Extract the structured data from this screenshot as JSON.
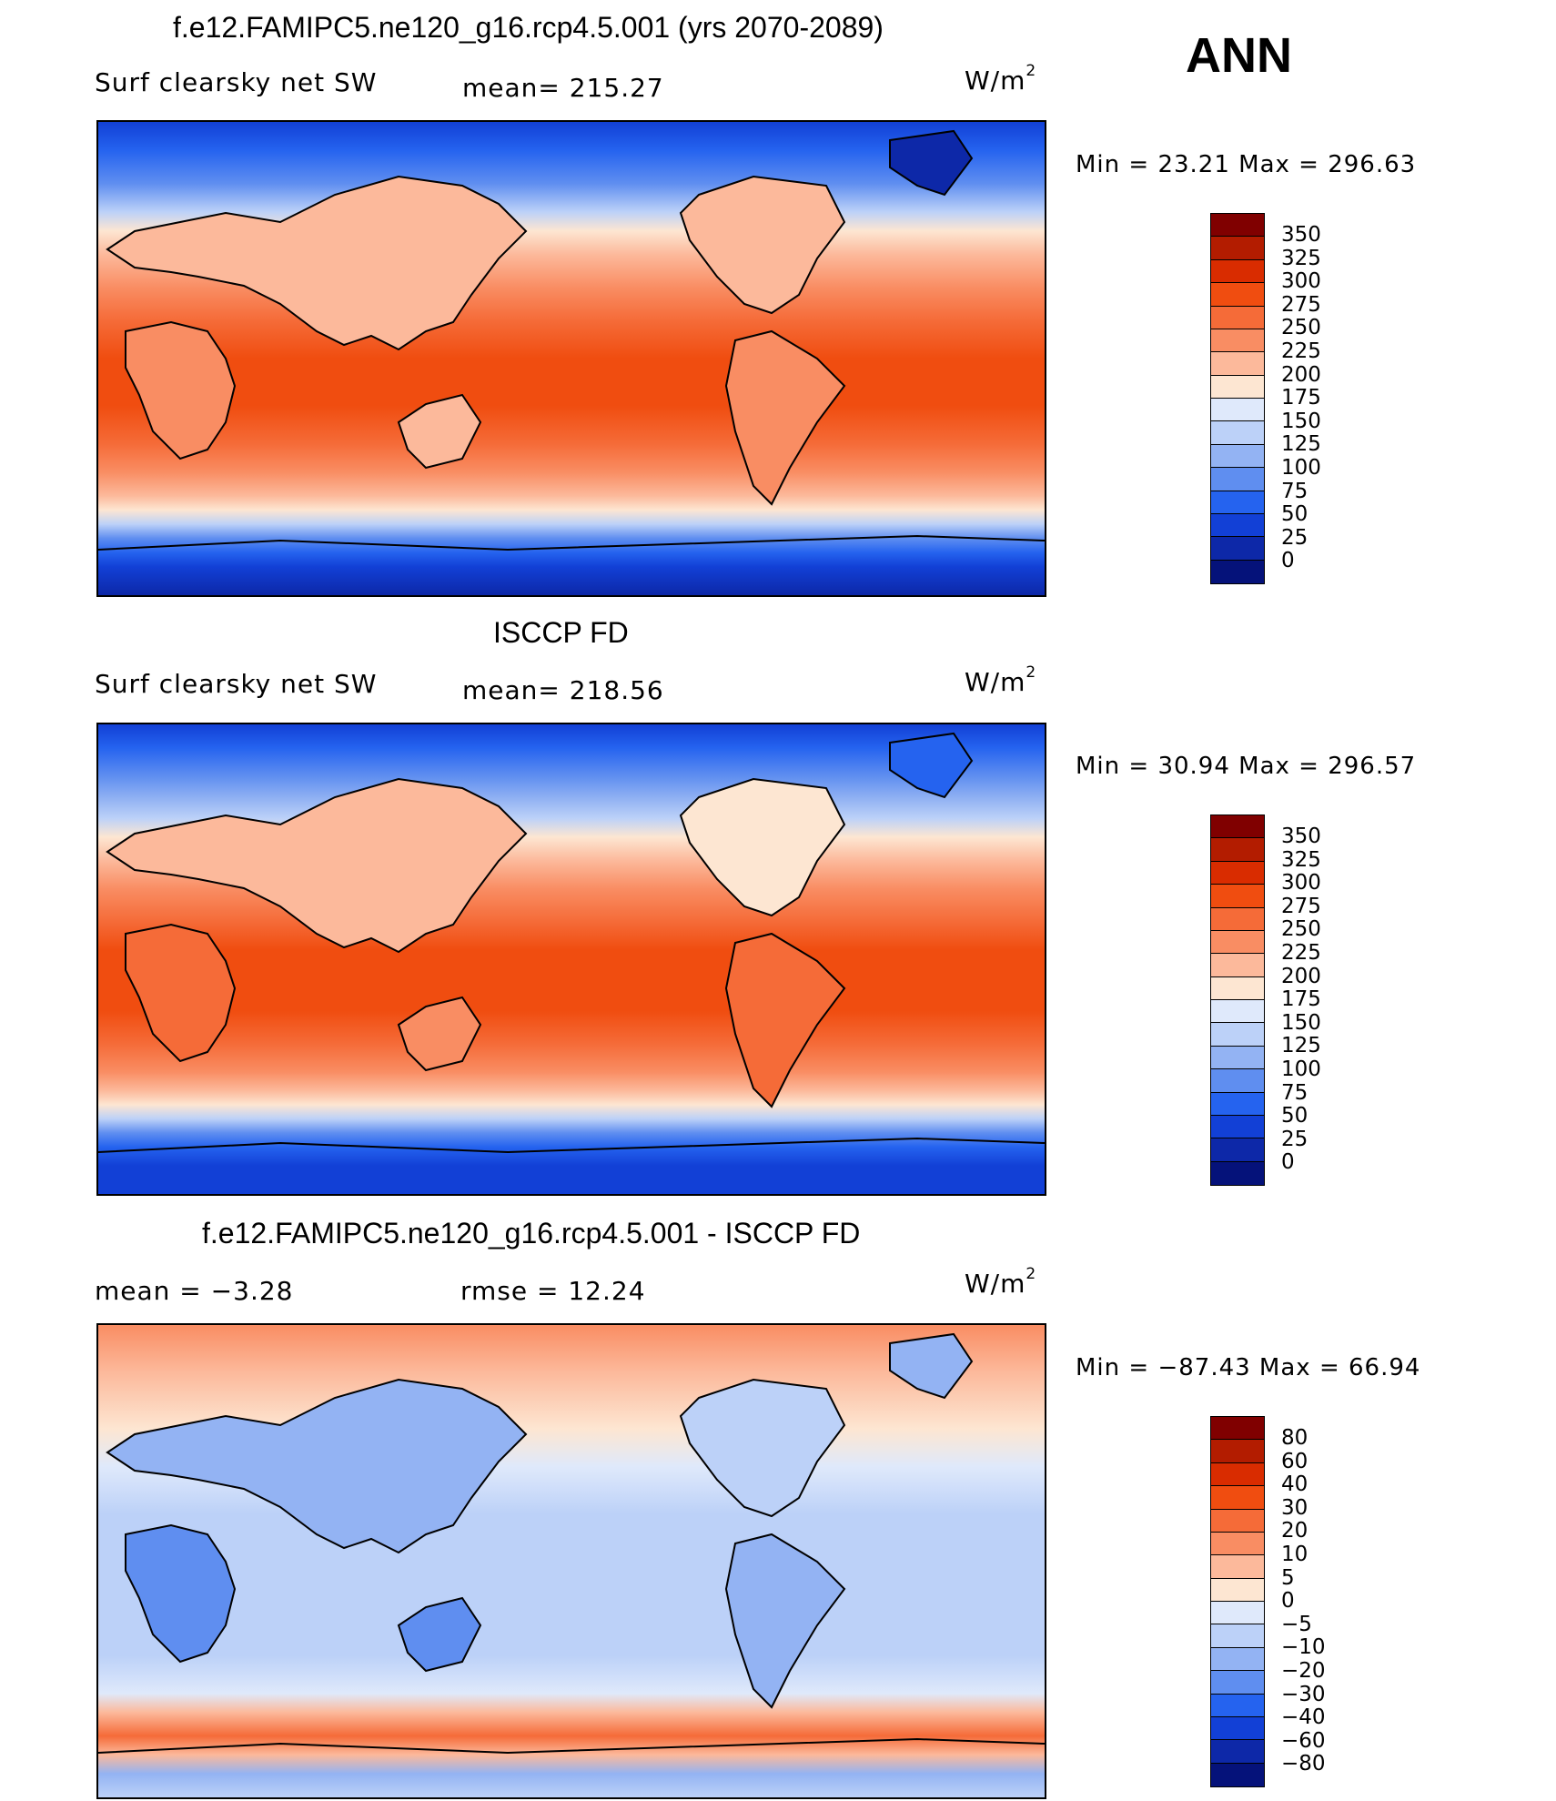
{
  "header": {
    "ann": "ANN",
    "units": "W/m",
    "units_sup": "2"
  },
  "panels": [
    {
      "title": "f.e12.FAMIPC5.ne120_g16.rcp4.5.001 (yrs 2070-2089)",
      "left_label": "Surf clearsky net SW",
      "mid_label": "mean=  215.27",
      "minmax": "Min =    23.21  Max  =  296.63",
      "levels": [
        "350",
        "325",
        "300",
        "275",
        "250",
        "225",
        "200",
        "175",
        "150",
        "125",
        "100",
        "75",
        "50",
        "25",
        "0"
      ],
      "colors": [
        "#800000",
        "#b31c00",
        "#d92c00",
        "#f04d10",
        "#f56b38",
        "#f98d63",
        "#fcb99b",
        "#fde6d2",
        "#dfe9fb",
        "#bcd1f8",
        "#93b3f3",
        "#5f8ef0",
        "#2563ef",
        "#1240d6",
        "#0d28a8",
        "#05127a"
      ]
    },
    {
      "title": "ISCCP FD",
      "left_label": "Surf clearsky net SW",
      "mid_label": "mean=  218.56",
      "minmax": "Min =    30.94  Max  =  296.57",
      "levels": [
        "350",
        "325",
        "300",
        "275",
        "250",
        "225",
        "200",
        "175",
        "150",
        "125",
        "100",
        "75",
        "50",
        "25",
        "0"
      ],
      "colors": [
        "#800000",
        "#b31c00",
        "#d92c00",
        "#f04d10",
        "#f56b38",
        "#f98d63",
        "#fcb99b",
        "#fde6d2",
        "#dfe9fb",
        "#bcd1f8",
        "#93b3f3",
        "#5f8ef0",
        "#2563ef",
        "#1240d6",
        "#0d28a8",
        "#05127a"
      ]
    },
    {
      "title": "f.e12.FAMIPC5.ne120_g16.rcp4.5.001 - ISCCP FD",
      "left_label": "mean  =    −3.28",
      "mid_label": "rmse  =    12.24",
      "minmax": "Min  =  −87.43  Max  =    66.94",
      "levels": [
        "80",
        "60",
        "40",
        "30",
        "20",
        "10",
        "5",
        "0",
        "−5",
        "−10",
        "−20",
        "−30",
        "−40",
        "−60",
        "−80"
      ],
      "colors": [
        "#800000",
        "#b31c00",
        "#d92c00",
        "#f04d10",
        "#f56b38",
        "#f98d63",
        "#fcb99b",
        "#fde6d2",
        "#dfe9fb",
        "#bcd1f8",
        "#93b3f3",
        "#5f8ef0",
        "#2563ef",
        "#1240d6",
        "#0d28a8",
        "#05127a"
      ]
    }
  ]
}
